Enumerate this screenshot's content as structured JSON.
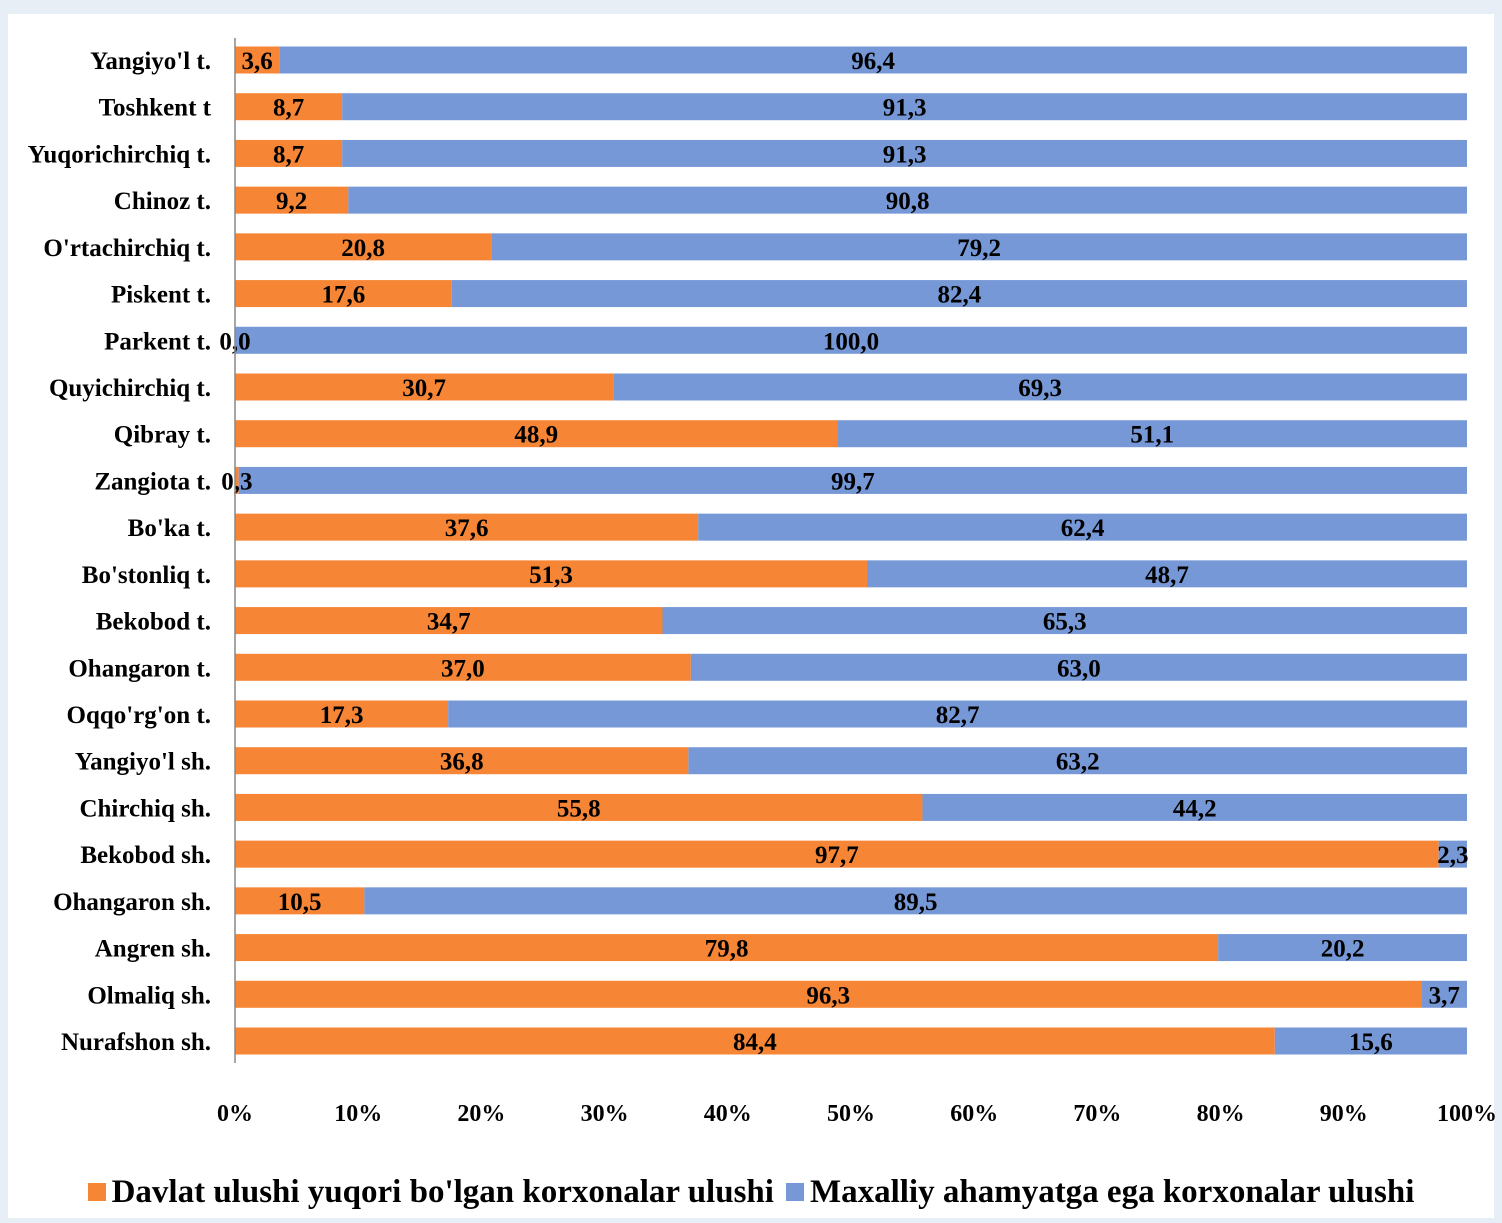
{
  "chart_data": {
    "type": "bar",
    "orientation": "horizontal",
    "stacked": "percent",
    "categories": [
      "Yangiyo'l t.",
      "Toshkent t",
      "Yuqorichirchiq t.",
      "Chinoz t.",
      "O'rtachirchiq t.",
      "Piskent t.",
      "Parkent t.",
      "Quyichirchiq t.",
      "Qibray t.",
      "Zangiota t.",
      "Bo'ka t.",
      "Bo'stonliq t.",
      "Bekobod t.",
      "Ohangaron t.",
      "Oqqo'rg'on t.",
      "Yangiyo'l sh.",
      "Chirchiq sh.",
      "Bekobod sh.",
      "Ohangaron sh.",
      "Angren sh.",
      "Olmaliq sh.",
      "Nurafshon sh."
    ],
    "series": [
      {
        "name": "Davlat ulushi yuqori bo'lgan korxonalar ulushi",
        "color": "#f68535",
        "values": [
          3.6,
          8.7,
          8.7,
          9.2,
          20.8,
          17.6,
          0.0,
          30.7,
          48.9,
          0.3,
          37.6,
          51.3,
          34.7,
          37.0,
          17.3,
          36.8,
          55.8,
          97.7,
          10.5,
          79.8,
          96.3,
          84.4
        ],
        "labels": [
          "3,6",
          "8,7",
          "8,7",
          "9,2",
          "20,8",
          "17,6",
          "0,0",
          "30,7",
          "48,9",
          "0,3",
          "37,6",
          "51,3",
          "34,7",
          "37,0",
          "17,3",
          "36,8",
          "55,8",
          "97,7",
          "10,5",
          "79,8",
          "96,3",
          "84,4"
        ]
      },
      {
        "name": "Maxalliy ahamyatga ega korxonalar ulushi",
        "color": "#7698d6",
        "values": [
          96.4,
          91.3,
          91.3,
          90.8,
          79.2,
          82.4,
          100.0,
          69.3,
          51.1,
          99.7,
          62.4,
          48.7,
          65.3,
          63.0,
          82.7,
          63.2,
          44.2,
          2.3,
          89.5,
          20.2,
          3.7,
          15.6
        ],
        "labels": [
          "96,4",
          "91,3",
          "91,3",
          "90,8",
          "79,2",
          "82,4",
          "100,0",
          "69,3",
          "51,1",
          "99,7",
          "62,4",
          "48,7",
          "65,3",
          "63,0",
          "82,7",
          "63,2",
          "44,2",
          "2,3",
          "89,5",
          "20,2",
          "3,7",
          "15,6"
        ]
      }
    ],
    "xlim": [
      0,
      100
    ],
    "xticks": [
      "0%",
      "10%",
      "20%",
      "30%",
      "40%",
      "50%",
      "60%",
      "70%",
      "80%",
      "90%",
      "100%"
    ],
    "grid": false,
    "legend_position": "bottom"
  }
}
